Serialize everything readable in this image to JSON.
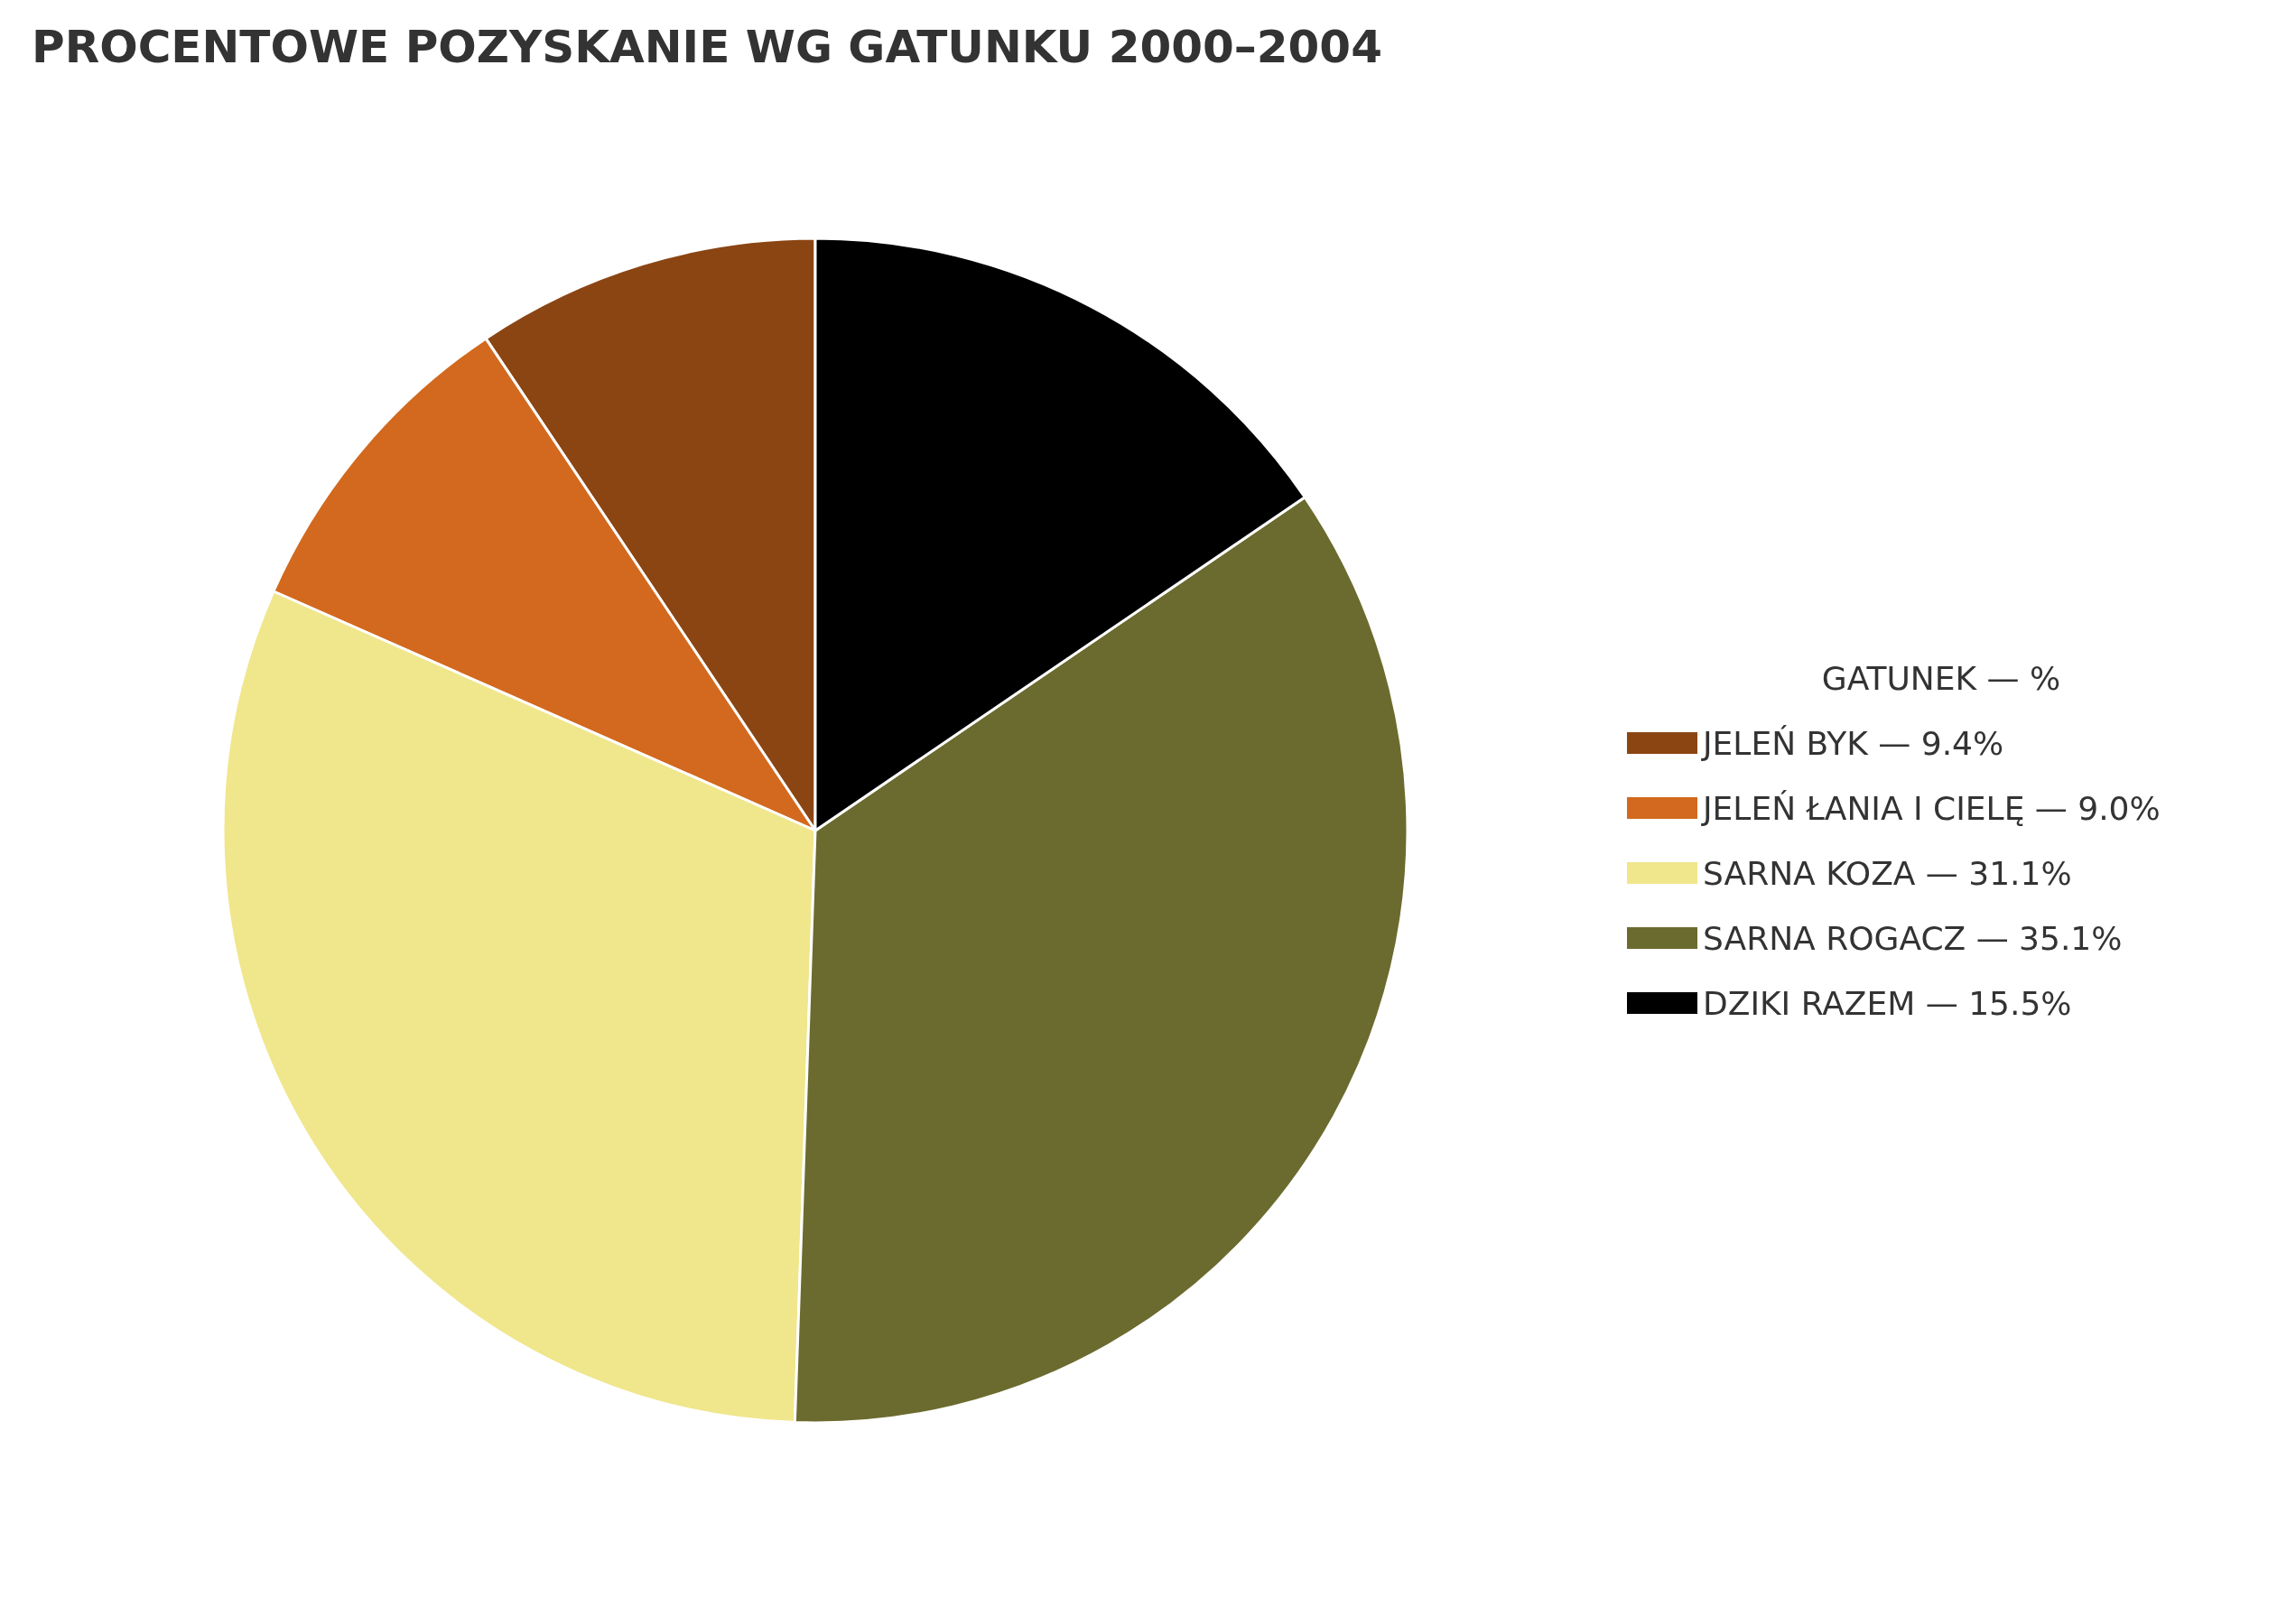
{
  "chart_data": {
    "type": "pie",
    "title": "PROCENTOWE POZYSKANIE WG GATUNKU 2000–2004",
    "legend_title": "GATUNEK — %",
    "categories": [
      "JELEŃ BYK — 9.4%",
      "JELEŃ ŁANIA I CIELĘ — 9.0%",
      "SARNA KOZA — 31.1%",
      "SARNA ROGACZ — 35.1%",
      "DZIKI RAZEM — 15.5%"
    ],
    "values": [
      9.4,
      9.0,
      31.1,
      35.1,
      15.5
    ],
    "colors": [
      "#8b4513",
      "#d2691e",
      "#f0e68c",
      "#6b6b2f",
      "#000000"
    ],
    "legend": "right"
  }
}
